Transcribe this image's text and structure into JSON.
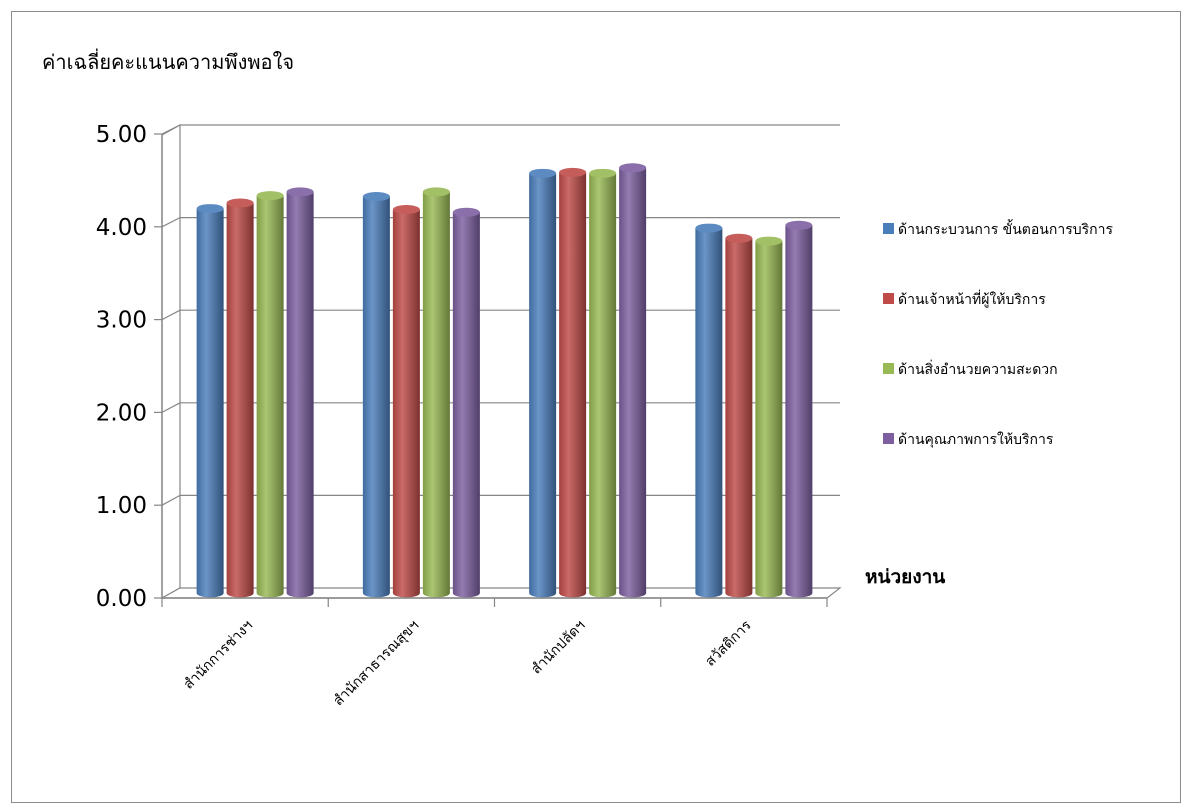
{
  "chart_data": {
    "type": "bar",
    "ylabel": "ค่าเฉลี่ยคะแนนความพึงพอใจ",
    "xlabel": "หน่วยงาน",
    "categories": [
      "สำนักการช่างฯ",
      "สำนักสาธารณสุขฯ",
      "สำนักปลัดฯ",
      "สวัสดิการ"
    ],
    "series": [
      {
        "name": "ด้านกระบวนการ ขั้นตอนการบริการ",
        "values": [
          4.11,
          4.24,
          4.49,
          3.9
        ]
      },
      {
        "name": "ด้านเจ้าหน้าที่ผู้ให้บริการ",
        "values": [
          4.17,
          4.1,
          4.5,
          3.79
        ]
      },
      {
        "name": "ด้านสิ่งอำนวยความสะดวก",
        "values": [
          4.25,
          4.29,
          4.49,
          3.76
        ]
      },
      {
        "name": "ด้านคุณภาพการให้บริการ",
        "values": [
          4.29,
          4.07,
          4.55,
          3.93
        ]
      }
    ],
    "yticks": [
      "0.00",
      "1.00",
      "2.00",
      "3.00",
      "4.00",
      "5.00"
    ],
    "ylim": [
      0,
      5
    ],
    "grid": true,
    "legend": "right",
    "colors": [
      "#4a7ebb",
      "#be4b48",
      "#98b954",
      "#7d5fa0"
    ]
  }
}
